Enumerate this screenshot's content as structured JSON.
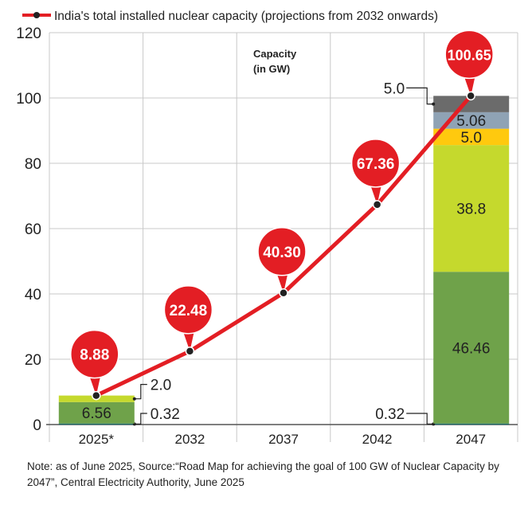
{
  "chart_data": {
    "type": "bar+line",
    "legend": "India's total installed nuclear capacity (projections from 2032 onwards)",
    "legend_placement": "top",
    "annotation": [
      "Capacity",
      "(in GW)"
    ],
    "categories": [
      "2025*",
      "2032",
      "2037",
      "2042",
      "2047"
    ],
    "ylim": [
      0,
      120
    ],
    "yticks": [
      0,
      20,
      40,
      60,
      80,
      100,
      120
    ],
    "grid": true,
    "line": {
      "values": [
        8.88,
        22.48,
        40.3,
        67.36,
        100.65
      ],
      "labels": [
        "8.88",
        "22.48",
        "40.30",
        "67.36",
        "100.65"
      ],
      "color": "#e31e24"
    },
    "stacks": [
      {
        "category": "2025*",
        "segments": [
          {
            "value": 0.32,
            "label": "0.32",
            "color": "#1f6f6a",
            "label_position": "outside"
          },
          {
            "value": 6.56,
            "label": "6.56",
            "color": "#6fa24a",
            "label_position": "inside"
          },
          {
            "value": 2.0,
            "label": "2.0",
            "color": "#c5d92d",
            "label_position": "outside"
          }
        ]
      },
      {
        "category": "2047",
        "segments": [
          {
            "value": 0.32,
            "label": "0.32",
            "color": "#1f6f6a",
            "label_position": "outside"
          },
          {
            "value": 46.46,
            "label": "46.46",
            "color": "#6fa24a",
            "label_position": "inside"
          },
          {
            "value": 38.8,
            "label": "38.8",
            "color": "#c5d92d",
            "label_position": "inside"
          },
          {
            "value": 5.0,
            "label": "5.0",
            "color": "#ffc90e",
            "label_position": "inside"
          },
          {
            "value": 5.06,
            "label": "5.06",
            "color": "#8fa3b5",
            "label_position": "inside"
          },
          {
            "value": 5.0,
            "label": "5.0",
            "color": "#6b6b6b",
            "label_position": "outside"
          }
        ]
      }
    ]
  },
  "note": "Note: as of June 2025, Source:“Road Map for achieving the goal of 100 GW of Nuclear Capacity by 2047”, Central Electricity Authority, June 2025"
}
